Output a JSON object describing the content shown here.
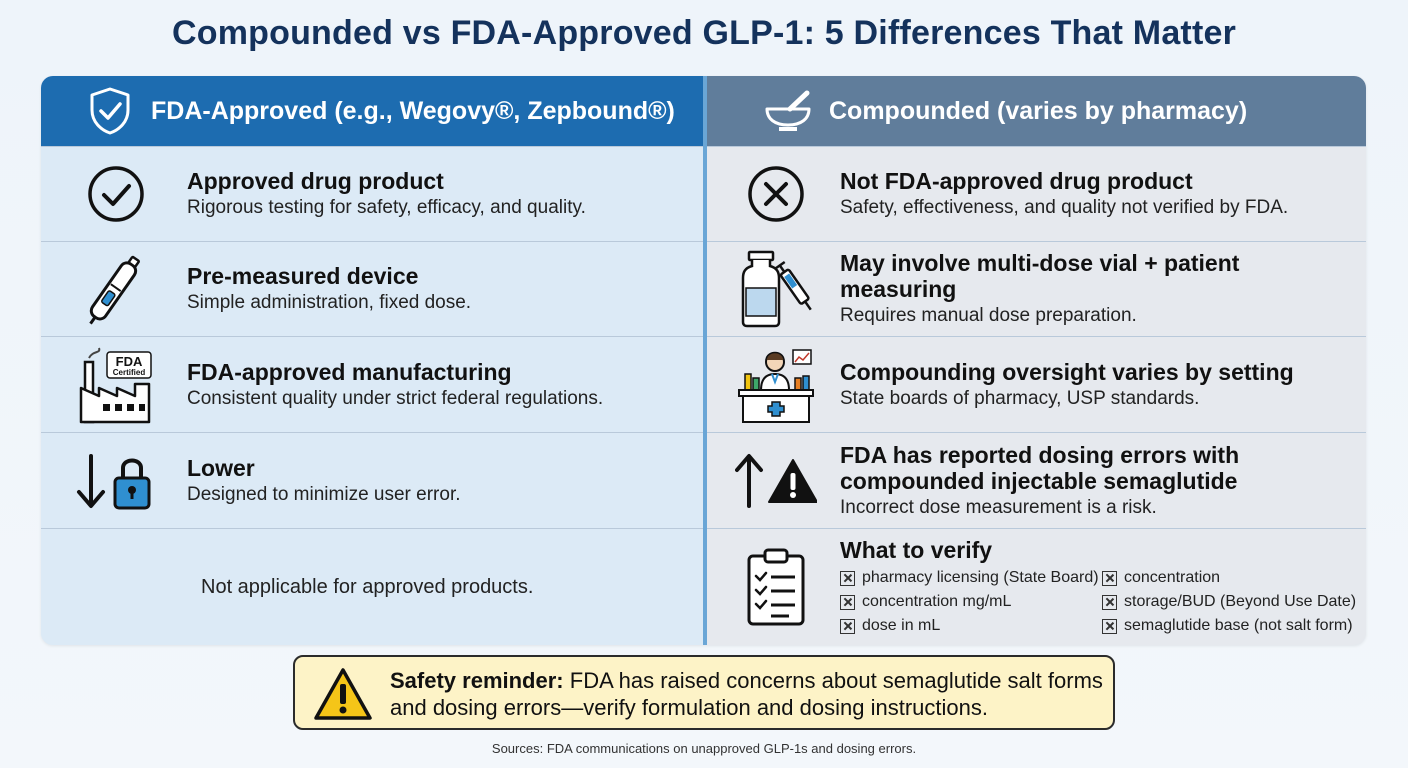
{
  "title": "Compounded vs FDA-Approved GLP-1: 5 Differences That Matter",
  "left": {
    "header": "FDA-Approved (e.g., Wegovy®, Zepbound®)",
    "header_icon": "shield-check-icon",
    "rows": [
      {
        "icon": "check-circle-icon",
        "title": "Approved drug product",
        "desc": "Rigorous testing for safety, efficacy, and quality."
      },
      {
        "icon": "injection-pen-icon",
        "title": "Pre-measured device",
        "desc": "Simple administration, fixed dose."
      },
      {
        "icon": "factory-icon",
        "badge_1": "FDA",
        "badge_2": "Certified",
        "title": "FDA-approved manufacturing",
        "desc": "Consistent quality under strict federal regulations."
      },
      {
        "icon": "arrow-down-lock-icon",
        "title": "Lower",
        "desc": "Designed to minimize user error."
      }
    ],
    "na_text": "Not applicable for approved products."
  },
  "right": {
    "header": "Compounded (varies by pharmacy)",
    "header_icon": "mortar-pestle-icon",
    "rows": [
      {
        "icon": "x-circle-icon",
        "title": "Not FDA-approved drug product",
        "desc": "Safety, effectiveness, and quality not verified by FDA."
      },
      {
        "icon": "vial-syringe-icon",
        "title": "May involve multi-dose vial + patient measuring",
        "desc": "Requires manual dose preparation."
      },
      {
        "icon": "pharmacist-icon",
        "title": "Compounding oversight varies by setting",
        "desc": "State boards of pharmacy, USP standards."
      },
      {
        "icon": "arrow-up-warning-icon",
        "title_line1": "FDA has reported dosing errors with",
        "title_line2": "compounded injectable semaglutide",
        "desc": "Incorrect dose measurement is a risk."
      }
    ],
    "verify": {
      "icon": "clipboard-checklist-icon",
      "title": "What to verify",
      "items": [
        "pharmacy licensing (State Board)",
        "concentration",
        "concentration mg/mL",
        "storage/BUD (Beyond Use Date)",
        "dose in mL",
        "semaglutide base (not salt form)"
      ]
    }
  },
  "safety": {
    "icon": "warning-triangle-icon",
    "label": "Safety reminder:",
    "text": "FDA has raised concerns about semaglutide salt forms and dosing errors—verify formulation and dosing instructions."
  },
  "sources": "Sources: FDA communications on unapproved GLP-1s and dosing errors."
}
